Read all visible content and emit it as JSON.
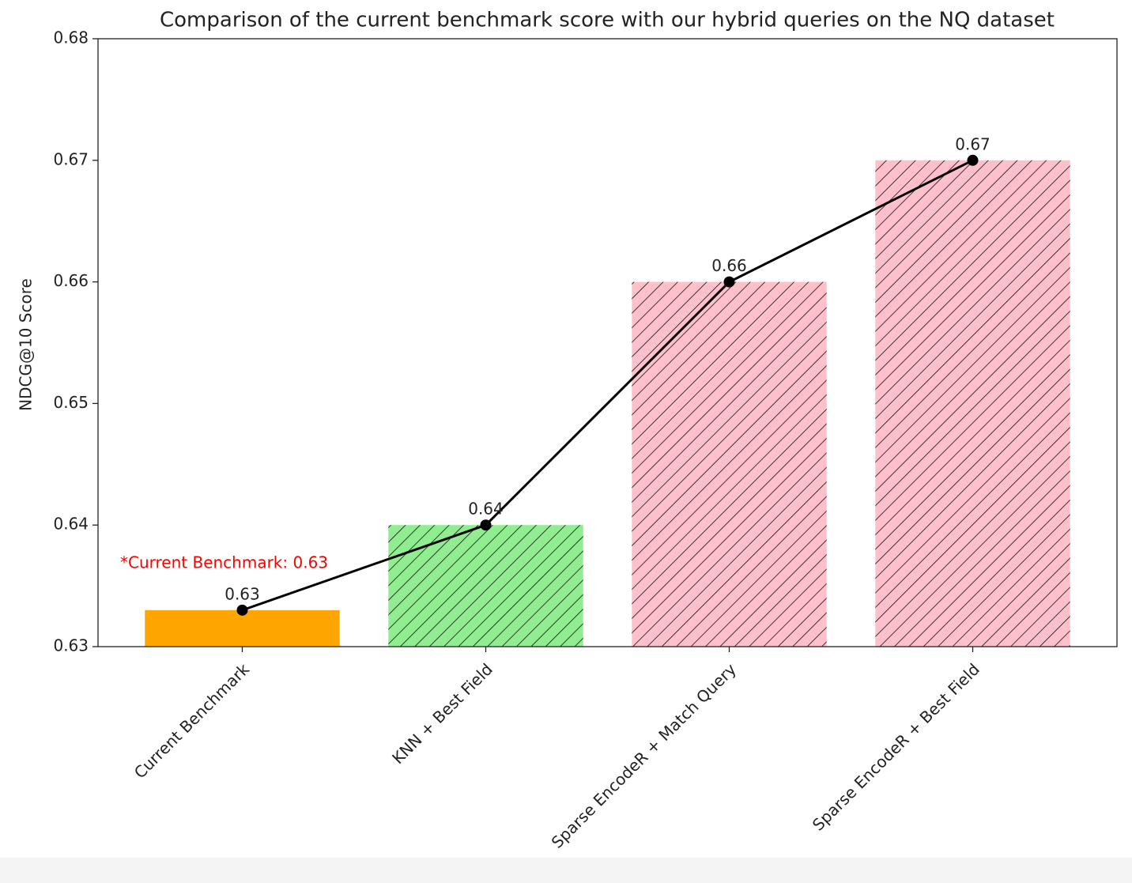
{
  "chart_data": {
    "type": "bar",
    "title": "Comparison of the current benchmark score with our hybrid queries on the NQ dataset",
    "y_label": "NDCG@10 Score",
    "categories": [
      "Current Benchmark",
      "KNN + Best Field",
      "Sparse EncodeR + Match Query",
      "Sparse EncodeR + Best Field"
    ],
    "values": [
      0.633,
      0.64,
      0.66,
      0.67
    ],
    "value_labels": [
      "0.63",
      "0.64",
      "0.66",
      "0.67"
    ],
    "colors": [
      "#ffa500",
      "#90ee90",
      "#ffc0cb",
      "#ffc0cb"
    ],
    "hatch": [
      false,
      true,
      true,
      true
    ],
    "line_color": "#000000",
    "annotation": "*Current Benchmark: 0.63",
    "annotation_color": "#ff0000",
    "ylim": [
      0.63,
      0.68
    ],
    "yticks": [
      0.63,
      0.64,
      0.65,
      0.66,
      0.67,
      0.68
    ]
  }
}
